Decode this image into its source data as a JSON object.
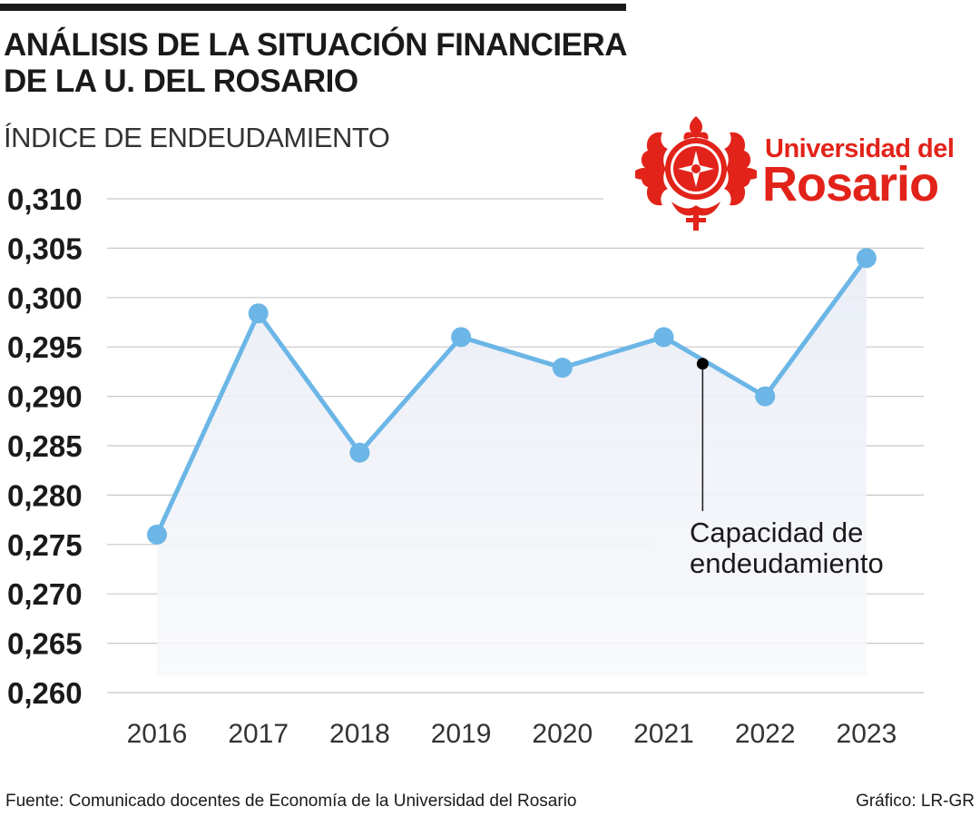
{
  "header": {
    "title_line1": "ANÁLISIS DE LA SITUACIÓN FINANCIERA",
    "title_line2": "DE LA U. DEL ROSARIO",
    "subtitle": "ÍNDICE DE ENDEUDAMIENTO"
  },
  "logo": {
    "line1": "Universidad del",
    "line2": "Rosario",
    "color": "#e2231a"
  },
  "chart_data": {
    "type": "line",
    "x": [
      "2016",
      "2017",
      "2018",
      "2019",
      "2020",
      "2021",
      "2022",
      "2023"
    ],
    "series": [
      {
        "values": [
          0.276,
          0.2984,
          0.2843,
          0.296,
          0.2929,
          0.296,
          0.29,
          0.304
        ]
      }
    ],
    "ylim": [
      0.26,
      0.31
    ],
    "yticks": [
      "0,310",
      "0,305",
      "0,300",
      "0,295",
      "0,290",
      "0,285",
      "0,280",
      "0,275",
      "0,270",
      "0,265",
      "0,260"
    ],
    "grid": true,
    "line_color": "#6bb6e6",
    "area_color": "#e8ecf5",
    "annotation": {
      "line1": "Capacidad de",
      "line2": "endeudamiento",
      "between": [
        "2021",
        "2022"
      ],
      "value": 0.2933
    }
  },
  "footer": {
    "source": "Fuente: Comunicado docentes de Economía de la Universidad del Rosario",
    "credit": "Gráfico: LR-GR"
  }
}
